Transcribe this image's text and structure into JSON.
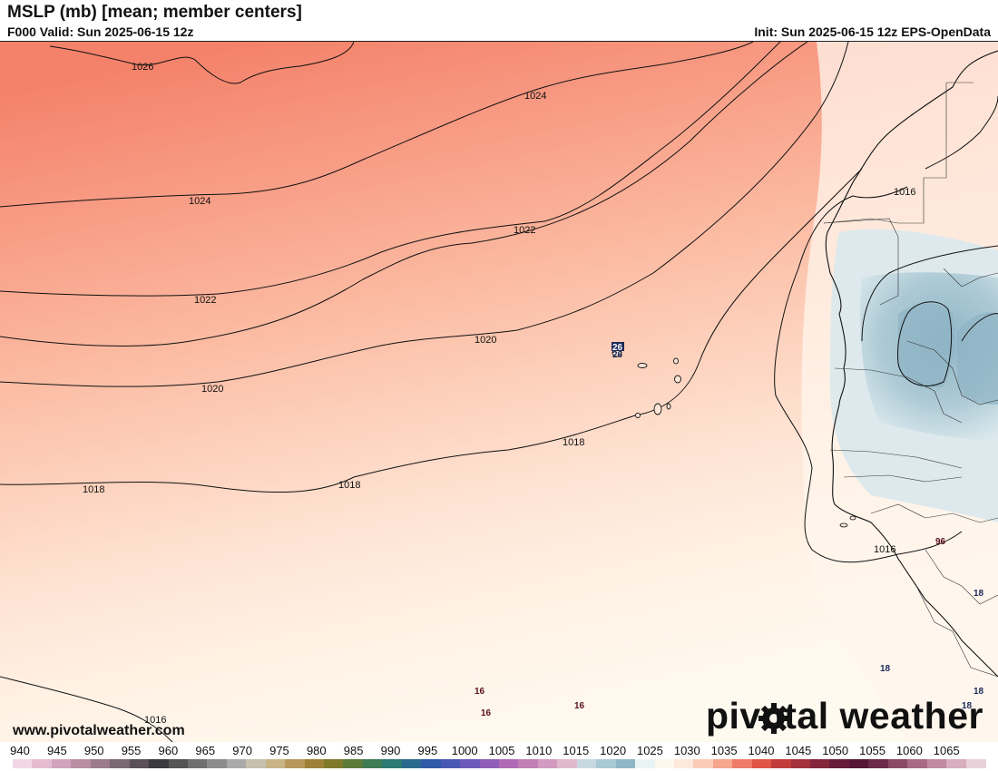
{
  "header": {
    "title": "MSLP (mb) [mean; member centers]",
    "valid": "F000 Valid: Sun 2025-06-15 12z",
    "init": "Init: Sun 2025-06-15 12z EPS-OpenData"
  },
  "contours": [
    {
      "value": "1026",
      "label": "1026"
    },
    {
      "value": "1024",
      "label": "1024"
    },
    {
      "value": "1024",
      "label": "1024"
    },
    {
      "value": "1022",
      "label": "1022"
    },
    {
      "value": "1022",
      "label": "1022"
    },
    {
      "value": "1020",
      "label": "1020"
    },
    {
      "value": "1020",
      "label": "1020"
    },
    {
      "value": "1018",
      "label": "1018"
    },
    {
      "value": "1018",
      "label": "1018"
    },
    {
      "value": "1018",
      "label": "1018"
    },
    {
      "value": "1016",
      "label": "1016"
    },
    {
      "value": "1016",
      "label": "1016"
    },
    {
      "value": "1016",
      "label": "1016"
    }
  ],
  "member_centers": [
    "26",
    "26",
    "16",
    "16",
    "16",
    "96",
    "18",
    "18",
    "18",
    "18"
  ],
  "footer": {
    "url": "www.pivotalweather.com",
    "brand": "pivotal weather"
  },
  "colorbar": {
    "ticks": [
      "940",
      "945",
      "950",
      "955",
      "960",
      "965",
      "970",
      "975",
      "980",
      "985",
      "990",
      "995",
      "1000",
      "1005",
      "1010",
      "1015",
      "1020",
      "1025",
      "1030",
      "1035",
      "1040",
      "1045",
      "1050",
      "1055",
      "1060",
      "1065"
    ],
    "colors": [
      "#f3d6e6",
      "#e6bcd2",
      "#d1a3bd",
      "#b98ea5",
      "#9c7b8c",
      "#7a6872",
      "#5a5058",
      "#3b3a3d",
      "#555555",
      "#6f6f6f",
      "#8c8c8c",
      "#a9a9a9",
      "#c6c0b0",
      "#c9b487",
      "#b8975a",
      "#9e8136",
      "#7f7a2a",
      "#5e7a3a",
      "#3f7b55",
      "#2c7a72",
      "#2a6a8e",
      "#2f5aa5",
      "#4a56b3",
      "#6b58b8",
      "#8e5eb8",
      "#b06ab5",
      "#c27fb5",
      "#d29bbf",
      "#e0b9cd",
      "#c7d8e0",
      "#a9c9d6",
      "#8fb6c5",
      "#e9f3f3",
      "#fef8ec",
      "#fde9dc",
      "#fbcbb8",
      "#f6a58e",
      "#ee7c68",
      "#df5548",
      "#c23c3c",
      "#a3303c",
      "#84263c",
      "#681c3a",
      "#541634",
      "#6b2a4a",
      "#8a4a66",
      "#a86a84",
      "#c18ba0",
      "#d8adbd",
      "#ead0d9"
    ]
  }
}
